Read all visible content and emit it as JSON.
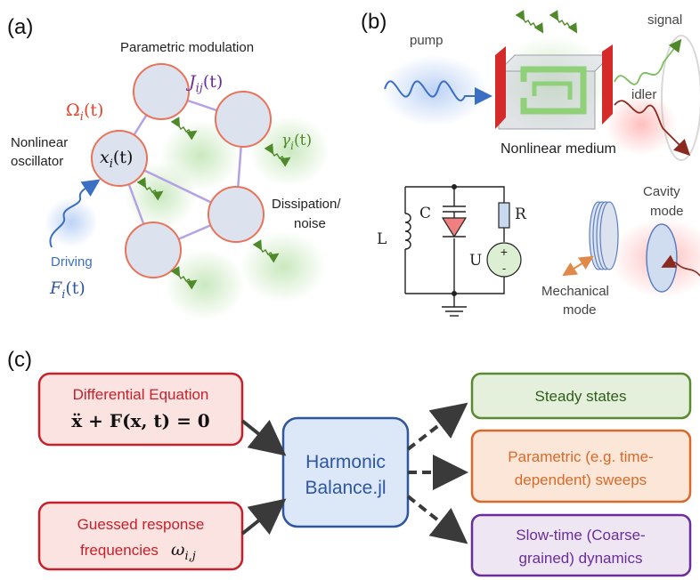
{
  "panels": {
    "a": {
      "tag": "(a)",
      "parametric_label": "Parametric modulation",
      "coupling": "J",
      "coupling_sub": "ij",
      "coupling_arg": "(t)",
      "freq": "Ω",
      "freq_sub": "i",
      "freq_arg": "(t)",
      "osc_line1": "Nonlinear",
      "osc_line2": "oscillator",
      "x_var": "x",
      "x_sub": "i",
      "x_arg": "(t)",
      "gamma": "γ",
      "gamma_sub": "i",
      "gamma_arg": "(t)",
      "diss_line1": "Dissipation/",
      "diss_line2": "noise",
      "driving": "Driving",
      "force": "F",
      "force_sub": "i",
      "force_arg": "(t)"
    },
    "b": {
      "tag": "(b)",
      "pump": "pump",
      "signal": "signal",
      "idler": "idler",
      "medium": "Nonlinear medium",
      "L": "L",
      "C": "C",
      "R": "R",
      "U": "U",
      "plus": "+",
      "minus": "-",
      "cavity_line1": "Cavity",
      "cavity_line2": "mode",
      "mech_line1": "Mechanical",
      "mech_line2": "mode"
    },
    "c": {
      "tag": "(c)",
      "diff_title": "Differential Equation",
      "diff_eq": "ẍ + F(x, t) = 0",
      "guess_line1": "Guessed response",
      "guess_line2": "frequencies",
      "omega": "ω",
      "omega_sub": "i,j",
      "hb_line1": "Harmonic",
      "hb_line2": "Balance.jl",
      "steady": "Steady states",
      "param_line1": "Parametric (e.g. time-",
      "param_line2": "dependent) sweeps",
      "slow_line1": "Slow-time (Coarse-",
      "slow_line2": "grained) dynamics"
    }
  },
  "colors": {
    "red": "#c8202a",
    "red_fill": "#fbe3e1",
    "blue": "#2f56a0",
    "blue_fill": "#dce8f7",
    "green": "#5a8a34",
    "green_fill": "#e4efdc",
    "orange": "#d9692a",
    "orange_fill": "#fbe6d8",
    "purple": "#6a2d9a",
    "purple_fill": "#eee6f3",
    "node_stroke": "#e8735a",
    "node_fill": "#dde3ee",
    "coupling_line": "#b3a3e6"
  }
}
